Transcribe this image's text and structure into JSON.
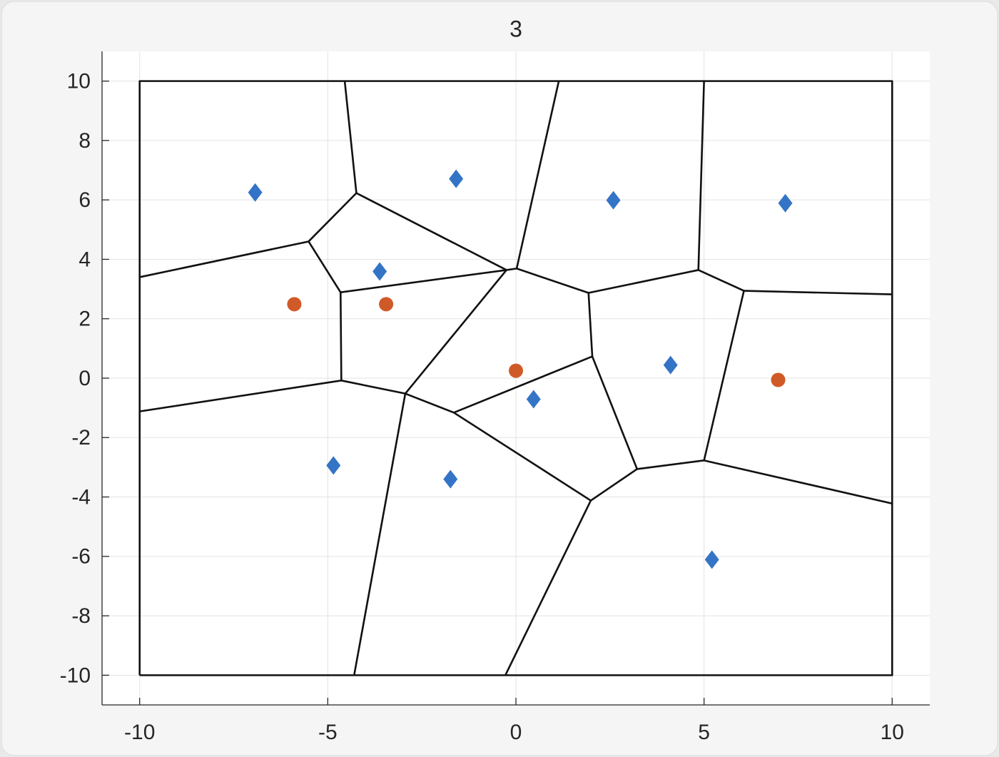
{
  "chart_data": {
    "type": "scatter",
    "title": "3",
    "xlim": [
      -11,
      11
    ],
    "ylim": [
      -11,
      11
    ],
    "xticks": [
      -10,
      -5,
      0,
      5,
      10
    ],
    "yticks": [
      -10,
      -8,
      -6,
      -4,
      -2,
      0,
      2,
      4,
      6,
      8,
      10
    ],
    "grid": true,
    "series": [
      {
        "marker": "diamond",
        "color": "#3474c6",
        "x": [
          -6.93,
          -1.59,
          2.59,
          7.16,
          -3.62,
          4.11,
          0.47,
          -4.85,
          -1.74,
          5.21
        ],
        "y": [
          6.25,
          6.71,
          5.99,
          5.89,
          3.59,
          0.44,
          -0.71,
          -2.94,
          -3.4,
          -6.11
        ]
      },
      {
        "marker": "circle",
        "color": "#d05a27",
        "x": [
          -5.89,
          -3.45,
          0,
          6.97
        ],
        "y": [
          2.49,
          2.49,
          0.25,
          -0.06
        ]
      }
    ],
    "edge_color": "#111111",
    "edges": [
      {
        "x": [
          -10,
          10,
          10,
          -10,
          -10
        ],
        "y": [
          -10,
          -10,
          10,
          10,
          -10
        ]
      },
      {
        "x": [
          -4.55,
          -4.24
        ],
        "y": [
          10,
          6.23
        ]
      },
      {
        "x": [
          -4.24,
          -5.51
        ],
        "y": [
          6.23,
          4.6
        ]
      },
      {
        "x": [
          -5.51,
          -10
        ],
        "y": [
          4.6,
          3.4
        ]
      },
      {
        "x": [
          -5.51,
          -4.66
        ],
        "y": [
          4.6,
          2.89
        ]
      },
      {
        "x": [
          -4.24,
          -0.25
        ],
        "y": [
          6.23,
          3.64
        ]
      },
      {
        "x": [
          -4.66,
          -0.25
        ],
        "y": [
          2.89,
          3.64
        ]
      },
      {
        "x": [
          -0.25,
          0.02
        ],
        "y": [
          3.64,
          3.69
        ]
      },
      {
        "x": [
          1.14,
          0.02
        ],
        "y": [
          10,
          3.69
        ]
      },
      {
        "x": [
          0.02,
          1.93
        ],
        "y": [
          3.69,
          2.87
        ]
      },
      {
        "x": [
          1.93,
          4.85
        ],
        "y": [
          2.87,
          3.64
        ]
      },
      {
        "x": [
          5.0,
          4.85
        ],
        "y": [
          10,
          3.64
        ]
      },
      {
        "x": [
          4.85,
          6.06
        ],
        "y": [
          3.64,
          2.94
        ]
      },
      {
        "x": [
          6.06,
          10
        ],
        "y": [
          2.94,
          2.82
        ]
      },
      {
        "x": [
          1.93,
          2.03
        ],
        "y": [
          2.87,
          0.73
        ]
      },
      {
        "x": [
          2.03,
          -1.65
        ],
        "y": [
          0.73,
          -1.16
        ]
      },
      {
        "x": [
          -0.25,
          -2.94
        ],
        "y": [
          3.64,
          -0.52
        ]
      },
      {
        "x": [
          -4.66,
          -4.64
        ],
        "y": [
          2.89,
          -0.08
        ]
      },
      {
        "x": [
          -4.64,
          -10
        ],
        "y": [
          -0.08,
          -1.12
        ]
      },
      {
        "x": [
          -4.64,
          -2.94
        ],
        "y": [
          -0.08,
          -0.52
        ]
      },
      {
        "x": [
          -2.94,
          -1.65
        ],
        "y": [
          -0.52,
          -1.16
        ]
      },
      {
        "x": [
          -2.94,
          -4.3
        ],
        "y": [
          -0.52,
          -10
        ]
      },
      {
        "x": [
          -1.65,
          1.99
        ],
        "y": [
          -1.16,
          -4.12
        ]
      },
      {
        "x": [
          2.03,
          3.22
        ],
        "y": [
          0.73,
          -3.06
        ]
      },
      {
        "x": [
          3.22,
          5.0
        ],
        "y": [
          -3.06,
          -2.77
        ]
      },
      {
        "x": [
          5.0,
          6.06
        ],
        "y": [
          -2.77,
          2.94
        ]
      },
      {
        "x": [
          5.0,
          10
        ],
        "y": [
          -2.77,
          -4.22
        ]
      },
      {
        "x": [
          3.22,
          1.99
        ],
        "y": [
          -3.06,
          -4.12
        ]
      },
      {
        "x": [
          1.99,
          -0.28
        ],
        "y": [
          -4.12,
          -10
        ]
      }
    ]
  }
}
